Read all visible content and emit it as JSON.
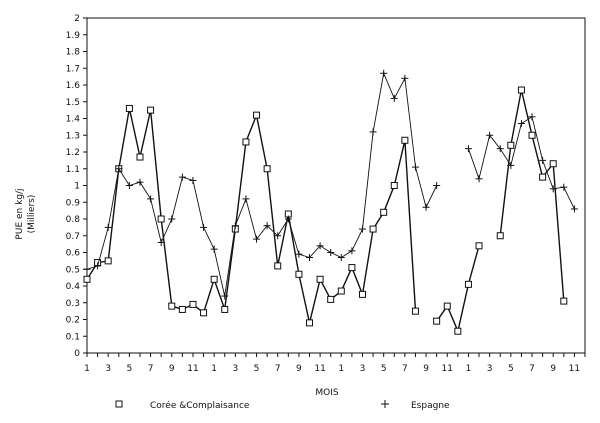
{
  "chart_data": {
    "type": "line",
    "title": "",
    "xlabel": "MOIS",
    "ylabel": "PUE en kg/j",
    "ylabel_unit": "(Milliers)",
    "ylim": [
      0,
      2
    ],
    "yticks": [
      "0",
      "0.1",
      "0.2",
      "0.3",
      "0.4",
      "0.5",
      "0.6",
      "0.7",
      "0.8",
      "0.9",
      "1",
      "1.1",
      "1.2",
      "1.3",
      "1.4",
      "1.5",
      "1.6",
      "1.7",
      "1.8",
      "1.9",
      "2"
    ],
    "x_tick_labels": [
      "1",
      "3",
      "5",
      "7",
      "9",
      "11",
      "1",
      "3",
      "5",
      "7",
      "9",
      "11",
      "1",
      "3",
      "5",
      "7",
      "9",
      "11",
      "1",
      "3",
      "5",
      "7",
      "9",
      "11"
    ],
    "x": [
      1,
      2,
      3,
      4,
      5,
      6,
      7,
      8,
      9,
      10,
      11,
      12,
      13,
      14,
      15,
      16,
      17,
      18,
      19,
      20,
      21,
      22,
      23,
      24,
      25,
      26,
      27,
      28,
      29,
      30,
      31,
      32,
      33,
      34,
      35,
      36,
      37,
      38,
      39,
      40,
      41,
      42,
      43,
      44,
      45,
      46,
      47,
      48
    ],
    "legend_position": "bottom",
    "grid": false,
    "series": [
      {
        "name": "Corée &Complaisance",
        "marker": "square",
        "values": [
          0.44,
          0.54,
          0.55,
          1.1,
          1.46,
          1.17,
          1.45,
          0.8,
          0.28,
          0.26,
          0.29,
          0.24,
          0.44,
          0.26,
          0.74,
          1.26,
          1.42,
          1.1,
          0.52,
          0.83,
          0.47,
          0.18,
          0.44,
          0.32,
          0.37,
          0.51,
          0.35,
          0.74,
          0.84,
          1.0,
          1.27,
          0.25,
          null,
          0.19,
          0.28,
          0.13,
          0.41,
          0.64,
          null,
          0.7,
          1.24,
          1.57,
          1.3,
          1.05,
          1.13,
          0.31,
          null,
          null
        ]
      },
      {
        "name": "Espagne",
        "marker": "plus",
        "values": [
          0.5,
          0.52,
          0.75,
          1.1,
          1.0,
          1.02,
          0.92,
          0.66,
          0.8,
          1.05,
          1.03,
          0.75,
          0.62,
          0.34,
          0.76,
          0.92,
          0.68,
          0.76,
          0.7,
          0.8,
          0.59,
          0.57,
          0.64,
          0.6,
          0.57,
          0.61,
          0.74,
          1.32,
          1.67,
          1.52,
          1.64,
          1.11,
          0.87,
          1.0,
          null,
          null,
          1.22,
          1.04,
          1.3,
          1.22,
          1.12,
          1.37,
          1.41,
          1.15,
          0.98,
          0.99,
          0.86,
          null
        ]
      }
    ]
  }
}
